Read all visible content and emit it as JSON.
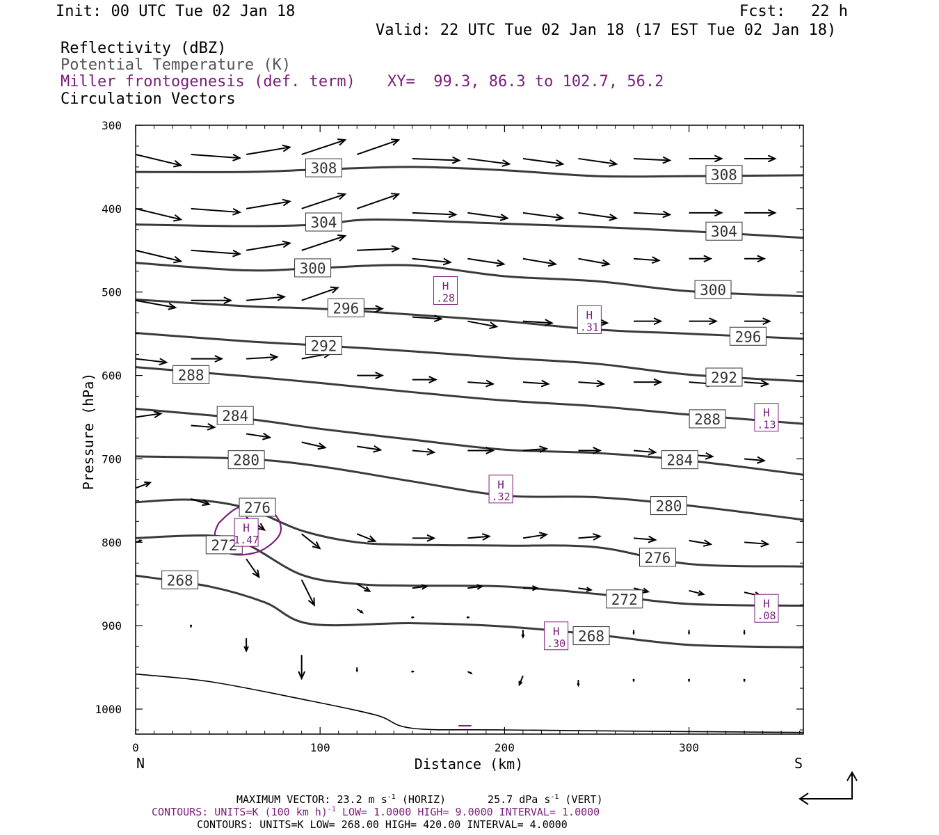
{
  "header": {
    "init": "Init: 00 UTC Tue 02 Jan 18",
    "fcst_label": "Fcst:",
    "fcst_value": "22 h",
    "valid": "Valid: 22 UTC Tue 02 Jan 18 (17 EST Tue 02 Jan 18)"
  },
  "legend": {
    "reflectivity": "Reflectivity (dBZ)",
    "theta": "Potential Temperature (K)",
    "miller": "Miller frontogenesis (def. term)",
    "xy": "XY=  99.3, 86.3 to 102.7, 56.2",
    "vectors": "Circulation Vectors"
  },
  "colors": {
    "theta_contour": "#3a3a3a",
    "frontogenesis": "#7a1e7a",
    "vectors": "#000000",
    "terrain": "#000000"
  },
  "chart_data": {
    "type": "cross-section",
    "xlabel": "Distance (km)",
    "ylabel": "Pressure (hPa)",
    "xlim": [
      0,
      362
    ],
    "ylim": [
      1030,
      300
    ],
    "x_ticks": [
      "0",
      "100",
      "200",
      "300"
    ],
    "y_ticks": [
      "300",
      "400",
      "500",
      "600",
      "700",
      "800",
      "900",
      "1000"
    ],
    "end_labels": {
      "left": "N",
      "right": "S"
    },
    "grid": false,
    "theta_contours": [
      {
        "label": "308",
        "label_at": [
          [
            102,
            351
          ],
          [
            319,
            359
          ]
        ],
        "points": [
          [
            0,
            356
          ],
          [
            60,
            356
          ],
          [
            100,
            353
          ],
          [
            150,
            350
          ],
          [
            200,
            354
          ],
          [
            250,
            361
          ],
          [
            300,
            361
          ],
          [
            362,
            360
          ]
        ]
      },
      {
        "label": "304",
        "label_at": [
          [
            102,
            416
          ],
          [
            319,
            427
          ]
        ],
        "points": [
          [
            0,
            419
          ],
          [
            60,
            421
          ],
          [
            100,
            419
          ],
          [
            130,
            413
          ],
          [
            200,
            418
          ],
          [
            250,
            422
          ],
          [
            300,
            427
          ],
          [
            362,
            435
          ]
        ]
      },
      {
        "label": "300",
        "label_at": [
          [
            96,
            471
          ],
          [
            313,
            497
          ]
        ],
        "points": [
          [
            0,
            465
          ],
          [
            60,
            474
          ],
          [
            100,
            471
          ],
          [
            150,
            468
          ],
          [
            200,
            481
          ],
          [
            250,
            487
          ],
          [
            300,
            499
          ],
          [
            362,
            505
          ]
        ]
      },
      {
        "label": "296",
        "label_at": [
          [
            114,
            519
          ],
          [
            332,
            553
          ]
        ],
        "points": [
          [
            0,
            509
          ],
          [
            60,
            517
          ],
          [
            100,
            520
          ],
          [
            150,
            527
          ],
          [
            200,
            535
          ],
          [
            250,
            545
          ],
          [
            300,
            550
          ],
          [
            362,
            556
          ]
        ]
      },
      {
        "label": "292",
        "label_at": [
          [
            102,
            564
          ],
          [
            319,
            602
          ]
        ],
        "points": [
          [
            0,
            549
          ],
          [
            60,
            559
          ],
          [
            100,
            564
          ],
          [
            150,
            571
          ],
          [
            200,
            579
          ],
          [
            250,
            586
          ],
          [
            300,
            599
          ],
          [
            362,
            607
          ]
        ]
      },
      {
        "label": "288",
        "label_at": [
          [
            30,
            599
          ],
          [
            310,
            652
          ]
        ],
        "points": [
          [
            0,
            590
          ],
          [
            60,
            601
          ],
          [
            100,
            609
          ],
          [
            150,
            620
          ],
          [
            200,
            630
          ],
          [
            250,
            637
          ],
          [
            300,
            647
          ],
          [
            362,
            658
          ]
        ]
      },
      {
        "label": "284",
        "label_at": [
          [
            54,
            648
          ],
          [
            295,
            701
          ]
        ],
        "points": [
          [
            0,
            640
          ],
          [
            60,
            652
          ],
          [
            100,
            664
          ],
          [
            150,
            677
          ],
          [
            200,
            689
          ],
          [
            250,
            693
          ],
          [
            300,
            702
          ],
          [
            362,
            719
          ]
        ]
      },
      {
        "label": "280",
        "label_at": [
          [
            60,
            701
          ],
          [
            289,
            756
          ]
        ],
        "points": [
          [
            0,
            697
          ],
          [
            60,
            700
          ],
          [
            100,
            709
          ],
          [
            150,
            727
          ],
          [
            200,
            744
          ],
          [
            250,
            746
          ],
          [
            300,
            756
          ],
          [
            362,
            773
          ]
        ]
      },
      {
        "label": "276",
        "label_at": [
          [
            66,
            758
          ],
          [
            283,
            818
          ]
        ],
        "points": [
          [
            0,
            752
          ],
          [
            30,
            749
          ],
          [
            60,
            759
          ],
          [
            90,
            786
          ],
          [
            120,
            800
          ],
          [
            150,
            803
          ],
          [
            200,
            804
          ],
          [
            250,
            806
          ],
          [
            300,
            826
          ],
          [
            362,
            829
          ]
        ]
      },
      {
        "label": "272",
        "label_at": [
          [
            48,
            803
          ],
          [
            265,
            868
          ]
        ],
        "points": [
          [
            0,
            795
          ],
          [
            40,
            792
          ],
          [
            60,
            802
          ],
          [
            90,
            839
          ],
          [
            120,
            850
          ],
          [
            150,
            852
          ],
          [
            200,
            853
          ],
          [
            250,
            862
          ],
          [
            300,
            874
          ],
          [
            362,
            876
          ]
        ]
      },
      {
        "label": "268",
        "label_at": [
          [
            24,
            845
          ],
          [
            247,
            912
          ]
        ],
        "points": [
          [
            0,
            840
          ],
          [
            40,
            853
          ],
          [
            70,
            872
          ],
          [
            95,
            898
          ],
          [
            150,
            897
          ],
          [
            200,
            901
          ],
          [
            250,
            911
          ],
          [
            300,
            923
          ],
          [
            362,
            926
          ]
        ]
      }
    ],
    "frontogenesis_maxima": [
      {
        "symbol": "H",
        "value": ".28",
        "at": [
          168,
          499
        ]
      },
      {
        "symbol": "H",
        "value": ".31",
        "at": [
          246,
          534
        ]
      },
      {
        "symbol": "H",
        "value": ".13",
        "at": [
          342,
          651
        ]
      },
      {
        "symbol": "H",
        "value": ".32",
        "at": [
          198,
          737
        ]
      },
      {
        "symbol": "H",
        "value": "1.47",
        "at": [
          60,
          789
        ]
      },
      {
        "symbol": "H",
        "value": ".08",
        "at": [
          342,
          880
        ]
      },
      {
        "symbol": "H",
        "value": ".30",
        "at": [
          228,
          913
        ]
      }
    ],
    "frontogenesis_contour": [
      [
        45,
        777
      ],
      [
        55,
        759
      ],
      [
        68,
        755
      ],
      [
        77,
        771
      ],
      [
        78,
        791
      ],
      [
        68,
        810
      ],
      [
        55,
        815
      ],
      [
        47,
        808
      ],
      [
        43,
        791
      ],
      [
        45,
        777
      ]
    ],
    "terrain_line": [
      [
        0,
        958
      ],
      [
        40,
        967
      ],
      [
        90,
        988
      ],
      [
        130,
        1007
      ],
      [
        150,
        1023
      ],
      [
        200,
        1025
      ],
      [
        300,
        1027
      ],
      [
        362,
        1028
      ]
    ],
    "vectors_note": "u (m s-1) / omega (dPa s-1) circulation vectors at x,p grid",
    "vectors": [
      [
        0,
        335,
        25,
        6
      ],
      [
        30,
        335,
        27,
        2
      ],
      [
        60,
        335,
        24,
        -4
      ],
      [
        90,
        335,
        24,
        -8
      ],
      [
        120,
        335,
        23,
        -8
      ],
      [
        150,
        340,
        26,
        1
      ],
      [
        180,
        340,
        23,
        3
      ],
      [
        210,
        340,
        22,
        3
      ],
      [
        240,
        340,
        21,
        3
      ],
      [
        270,
        340,
        20,
        1
      ],
      [
        300,
        340,
        18,
        0
      ],
      [
        330,
        340,
        17,
        0
      ],
      [
        0,
        400,
        25,
        6
      ],
      [
        30,
        400,
        27,
        2
      ],
      [
        60,
        400,
        24,
        -4
      ],
      [
        90,
        400,
        24,
        -8
      ],
      [
        120,
        400,
        23,
        -8
      ],
      [
        150,
        405,
        24,
        1
      ],
      [
        180,
        405,
        22,
        3
      ],
      [
        210,
        405,
        22,
        3
      ],
      [
        240,
        405,
        21,
        3
      ],
      [
        270,
        405,
        20,
        1
      ],
      [
        300,
        405,
        18,
        0
      ],
      [
        330,
        405,
        17,
        0
      ],
      [
        0,
        450,
        25,
        6
      ],
      [
        30,
        450,
        27,
        2
      ],
      [
        60,
        450,
        24,
        -4
      ],
      [
        90,
        450,
        24,
        -8
      ],
      [
        120,
        450,
        23,
        -1
      ],
      [
        150,
        460,
        21,
        2
      ],
      [
        180,
        460,
        20,
        3
      ],
      [
        210,
        460,
        18,
        3
      ],
      [
        240,
        460,
        17,
        3
      ],
      [
        270,
        460,
        14,
        1
      ],
      [
        300,
        460,
        12,
        0
      ],
      [
        330,
        460,
        11,
        0
      ],
      [
        0,
        510,
        22,
        4
      ],
      [
        30,
        510,
        22,
        0
      ],
      [
        60,
        510,
        21,
        -2
      ],
      [
        90,
        510,
        20,
        -7
      ],
      [
        120,
        520,
        14,
        0
      ],
      [
        150,
        530,
        16,
        1
      ],
      [
        180,
        535,
        16,
        3
      ],
      [
        210,
        535,
        16,
        1
      ],
      [
        240,
        535,
        16,
        1
      ],
      [
        270,
        535,
        15,
        0
      ],
      [
        300,
        535,
        15,
        0
      ],
      [
        330,
        535,
        14,
        0
      ],
      [
        0,
        580,
        17,
        2
      ],
      [
        30,
        580,
        17,
        0
      ],
      [
        60,
        580,
        17,
        -1
      ],
      [
        90,
        580,
        16,
        -3
      ],
      [
        120,
        600,
        14,
        0
      ],
      [
        150,
        605,
        13,
        0
      ],
      [
        180,
        608,
        14,
        1
      ],
      [
        210,
        608,
        14,
        1
      ],
      [
        240,
        608,
        14,
        1
      ],
      [
        270,
        608,
        15,
        0
      ],
      [
        300,
        608,
        14,
        1
      ],
      [
        330,
        608,
        13,
        1
      ],
      [
        0,
        650,
        14,
        -2
      ],
      [
        30,
        660,
        13,
        1
      ],
      [
        60,
        670,
        13,
        2
      ],
      [
        90,
        680,
        13,
        3
      ],
      [
        120,
        685,
        13,
        2
      ],
      [
        150,
        690,
        12,
        1
      ],
      [
        180,
        690,
        14,
        0
      ],
      [
        210,
        690,
        13,
        -1
      ],
      [
        240,
        690,
        12,
        0
      ],
      [
        270,
        690,
        12,
        1
      ],
      [
        300,
        695,
        13,
        1
      ],
      [
        330,
        700,
        11,
        1
      ],
      [
        0,
        735,
        8,
        -3
      ],
      [
        30,
        748,
        10,
        3
      ],
      [
        60,
        770,
        10,
        7
      ],
      [
        90,
        790,
        10,
        8
      ],
      [
        120,
        790,
        10,
        4
      ],
      [
        150,
        795,
        12,
        0
      ],
      [
        180,
        795,
        12,
        -1
      ],
      [
        210,
        795,
        13,
        -2
      ],
      [
        240,
        795,
        12,
        -1
      ],
      [
        270,
        795,
        12,
        1
      ],
      [
        300,
        798,
        12,
        2
      ],
      [
        330,
        800,
        13,
        1
      ],
      [
        0,
        800,
        3,
        -1
      ],
      [
        60,
        820,
        7,
        10
      ],
      [
        90,
        845,
        7,
        14
      ],
      [
        120,
        850,
        7,
        4
      ],
      [
        150,
        855,
        8,
        -1
      ],
      [
        180,
        855,
        8,
        -1
      ],
      [
        210,
        855,
        8,
        0
      ],
      [
        240,
        855,
        7,
        1
      ],
      [
        270,
        855,
        8,
        2
      ],
      [
        300,
        858,
        8,
        2
      ],
      [
        330,
        860,
        9,
        2
      ],
      [
        30,
        900,
        0,
        1
      ],
      [
        60,
        915,
        0,
        7
      ],
      [
        90,
        935,
        0,
        13
      ],
      [
        120,
        880,
        3,
        2
      ],
      [
        150,
        890,
        1,
        0
      ],
      [
        180,
        890,
        1,
        0
      ],
      [
        210,
        905,
        0,
        4
      ],
      [
        240,
        905,
        0,
        2
      ],
      [
        270,
        905,
        0,
        2
      ],
      [
        300,
        905,
        0,
        2
      ],
      [
        330,
        905,
        0,
        2
      ],
      [
        120,
        950,
        0,
        2
      ],
      [
        150,
        955,
        1,
        0
      ],
      [
        180,
        955,
        2,
        1
      ],
      [
        210,
        960,
        -2,
        5
      ],
      [
        240,
        965,
        0,
        3
      ],
      [
        270,
        965,
        0,
        1
      ],
      [
        300,
        965,
        0,
        1
      ],
      [
        330,
        965,
        0,
        1
      ]
    ],
    "reference_vector": {
      "horiz": "23.2",
      "vert": "25.7"
    }
  },
  "footer": {
    "max_vector": "MAXIMUM VECTOR:  23.2 m s",
    "max_vector_exp": "-1",
    "max_vector_horiz": " (HORIZ)",
    "max_vector_vert": "25.7 dPa s",
    "max_vector_vert_exp": "-1",
    "max_vector_vert_tail": " (VERT)",
    "contours1_a": "CONTOURS:  UNITS=K (100 km h)",
    "contours1_exp": "-1",
    "contours1_b": "  LOW=   1.0000      HIGH=   9.0000      INTERVAL=    1.0000",
    "contours2": "CONTOURS:  UNITS=K  LOW=   268.00      HIGH=   420.00      INTERVAL=    4.0000"
  }
}
